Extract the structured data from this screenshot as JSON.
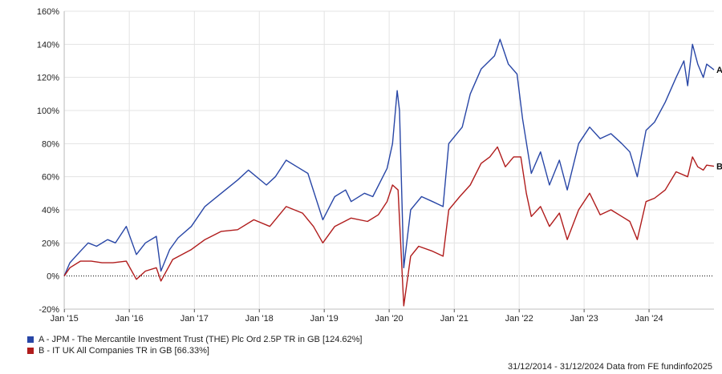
{
  "chart_data": {
    "type": "line",
    "title": "",
    "xlabel": "",
    "ylabel": "",
    "ylim": [
      -20,
      160
    ],
    "y_ticks": [
      "-20%",
      "0%",
      "20%",
      "40%",
      "60%",
      "80%",
      "100%",
      "120%",
      "140%",
      "160%"
    ],
    "x_ticks": [
      "Jan '15",
      "Jan '16",
      "Jan '17",
      "Jan '18",
      "Jan '19",
      "Jan '20",
      "Jan '21",
      "Jan '22",
      "Jan '23",
      "Jan '24"
    ],
    "grid": true,
    "x_range": [
      "2014-12-31",
      "2024-12-31"
    ],
    "series": [
      {
        "name": "A - JPM - The Mercantile Investment Trust (THE) Plc Ord 2.5P TR in GB [124.62%]",
        "end_marker": "A",
        "color": "#2846a6",
        "points": [
          [
            "2014-12-31",
            0
          ],
          [
            "2015-02-01",
            8
          ],
          [
            "2015-04-01",
            15
          ],
          [
            "2015-05-15",
            20
          ],
          [
            "2015-07-01",
            18
          ],
          [
            "2015-09-01",
            22
          ],
          [
            "2015-10-15",
            20
          ],
          [
            "2015-12-15",
            30
          ],
          [
            "2016-02-10",
            13
          ],
          [
            "2016-04-01",
            20
          ],
          [
            "2016-06-01",
            24
          ],
          [
            "2016-06-27",
            3
          ],
          [
            "2016-08-15",
            16
          ],
          [
            "2016-10-01",
            23
          ],
          [
            "2016-12-15",
            30
          ],
          [
            "2017-03-01",
            42
          ],
          [
            "2017-06-01",
            50
          ],
          [
            "2017-09-01",
            58
          ],
          [
            "2017-11-01",
            64
          ],
          [
            "2018-02-10",
            55
          ],
          [
            "2018-04-01",
            60
          ],
          [
            "2018-06-01",
            70
          ],
          [
            "2018-08-01",
            66
          ],
          [
            "2018-10-01",
            62
          ],
          [
            "2018-12-24",
            34
          ],
          [
            "2019-03-01",
            48
          ],
          [
            "2019-05-01",
            52
          ],
          [
            "2019-06-01",
            45
          ],
          [
            "2019-08-15",
            50
          ],
          [
            "2019-10-01",
            48
          ],
          [
            "2019-12-20",
            65
          ],
          [
            "2020-01-20",
            80
          ],
          [
            "2020-02-15",
            112
          ],
          [
            "2020-02-28",
            100
          ],
          [
            "2020-03-23",
            5
          ],
          [
            "2020-05-01",
            40
          ],
          [
            "2020-07-01",
            48
          ],
          [
            "2020-09-01",
            45
          ],
          [
            "2020-10-30",
            42
          ],
          [
            "2020-12-01",
            80
          ],
          [
            "2021-02-15",
            90
          ],
          [
            "2021-04-01",
            110
          ],
          [
            "2021-06-01",
            125
          ],
          [
            "2021-08-15",
            133
          ],
          [
            "2021-09-15",
            143
          ],
          [
            "2021-11-01",
            128
          ],
          [
            "2021-12-20",
            122
          ],
          [
            "2022-01-20",
            95
          ],
          [
            "2022-03-10",
            62
          ],
          [
            "2022-05-01",
            75
          ],
          [
            "2022-06-20",
            55
          ],
          [
            "2022-08-15",
            70
          ],
          [
            "2022-09-28",
            52
          ],
          [
            "2022-12-01",
            80
          ],
          [
            "2023-02-01",
            90
          ],
          [
            "2023-04-01",
            83
          ],
          [
            "2023-06-01",
            86
          ],
          [
            "2023-08-01",
            80
          ],
          [
            "2023-09-15",
            75
          ],
          [
            "2023-10-27",
            60
          ],
          [
            "2023-12-15",
            88
          ],
          [
            "2024-02-01",
            93
          ],
          [
            "2024-04-01",
            105
          ],
          [
            "2024-06-01",
            120
          ],
          [
            "2024-07-15",
            130
          ],
          [
            "2024-08-05",
            115
          ],
          [
            "2024-09-01",
            140
          ],
          [
            "2024-10-01",
            128
          ],
          [
            "2024-11-01",
            120
          ],
          [
            "2024-11-20",
            128
          ],
          [
            "2024-12-31",
            124.62
          ]
        ]
      },
      {
        "name": "B - IT UK All Companies TR in GB [66.33%]",
        "end_marker": "B",
        "color": "#b01c1c",
        "points": [
          [
            "2014-12-31",
            0
          ],
          [
            "2015-02-01",
            5
          ],
          [
            "2015-04-01",
            9
          ],
          [
            "2015-06-01",
            9
          ],
          [
            "2015-08-01",
            8
          ],
          [
            "2015-10-01",
            8
          ],
          [
            "2015-12-15",
            9
          ],
          [
            "2016-02-10",
            -2
          ],
          [
            "2016-04-01",
            3
          ],
          [
            "2016-06-01",
            5
          ],
          [
            "2016-06-27",
            -3
          ],
          [
            "2016-09-01",
            10
          ],
          [
            "2016-12-15",
            16
          ],
          [
            "2017-03-01",
            22
          ],
          [
            "2017-06-01",
            27
          ],
          [
            "2017-09-01",
            28
          ],
          [
            "2017-12-01",
            34
          ],
          [
            "2018-03-01",
            30
          ],
          [
            "2018-06-01",
            42
          ],
          [
            "2018-09-01",
            38
          ],
          [
            "2018-11-01",
            30
          ],
          [
            "2018-12-24",
            20
          ],
          [
            "2019-03-01",
            30
          ],
          [
            "2019-06-01",
            35
          ],
          [
            "2019-09-01",
            33
          ],
          [
            "2019-11-01",
            37
          ],
          [
            "2019-12-20",
            45
          ],
          [
            "2020-01-20",
            55
          ],
          [
            "2020-02-20",
            52
          ],
          [
            "2020-03-23",
            -18
          ],
          [
            "2020-05-01",
            12
          ],
          [
            "2020-06-15",
            18
          ],
          [
            "2020-09-01",
            15
          ],
          [
            "2020-10-30",
            12
          ],
          [
            "2020-12-01",
            40
          ],
          [
            "2021-02-01",
            48
          ],
          [
            "2021-04-01",
            55
          ],
          [
            "2021-06-01",
            68
          ],
          [
            "2021-07-20",
            72
          ],
          [
            "2021-09-01",
            78
          ],
          [
            "2021-10-15",
            66
          ],
          [
            "2021-12-01",
            72
          ],
          [
            "2022-01-10",
            72
          ],
          [
            "2022-02-10",
            50
          ],
          [
            "2022-03-10",
            36
          ],
          [
            "2022-05-01",
            42
          ],
          [
            "2022-06-20",
            30
          ],
          [
            "2022-08-15",
            38
          ],
          [
            "2022-09-28",
            22
          ],
          [
            "2022-12-01",
            40
          ],
          [
            "2023-02-01",
            50
          ],
          [
            "2023-04-01",
            37
          ],
          [
            "2023-06-01",
            40
          ],
          [
            "2023-08-01",
            36
          ],
          [
            "2023-09-15",
            33
          ],
          [
            "2023-10-27",
            22
          ],
          [
            "2023-12-15",
            45
          ],
          [
            "2024-02-01",
            47
          ],
          [
            "2024-04-01",
            52
          ],
          [
            "2024-06-01",
            63
          ],
          [
            "2024-08-05",
            60
          ],
          [
            "2024-09-01",
            72
          ],
          [
            "2024-10-01",
            66
          ],
          [
            "2024-11-01",
            64
          ],
          [
            "2024-11-20",
            67
          ],
          [
            "2024-12-31",
            66.33
          ]
        ]
      }
    ],
    "zero_line": "dotted",
    "footer": "31/12/2014 - 31/12/2024 Data from FE fundinfo2025"
  }
}
